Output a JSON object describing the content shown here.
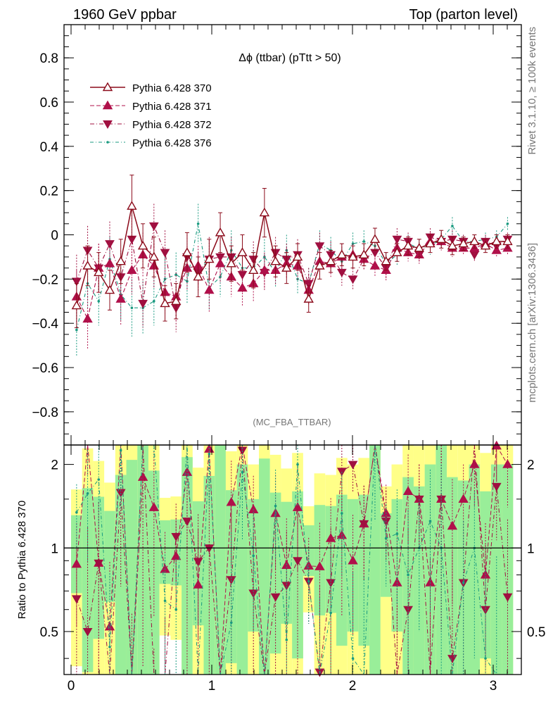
{
  "header": {
    "left": "1960 GeV ppbar",
    "right": "Top (parton level)"
  },
  "side_labels": {
    "rivet": "Rivet 3.1.10, ≥ 100k events",
    "mcplots": "mcplots.cern.ch [arXiv:1306.3436]"
  },
  "chart_data": {
    "type": "line",
    "title": "Δϕ (ttbar) (pTtt > 50)",
    "watermark": "(MC_FBA_TTBAR)",
    "xlim": [
      -0.05,
      3.2
    ],
    "ylim": [
      -0.95,
      0.95
    ],
    "x_ticks": [
      "0",
      "1",
      "2",
      "3"
    ],
    "y_ticks": [
      "−0.8",
      "−0.6",
      "−0.4",
      "−0.2",
      "0",
      "0.2",
      "0.4",
      "0.6",
      "0.8"
    ],
    "ratio": {
      "ylabel": "Ratio to Pythia 6.428 370",
      "ylim": [
        0.35,
        2.35
      ],
      "ticks": [
        "0.5",
        "1",
        "2"
      ],
      "reference_line": 1
    },
    "x": [
      0.0393,
      0.1178,
      0.1963,
      0.2749,
      0.3534,
      0.432,
      0.5105,
      0.589,
      0.6676,
      0.7461,
      0.8247,
      0.9032,
      0.9817,
      1.0603,
      1.1388,
      1.2174,
      1.2959,
      1.3744,
      1.453,
      1.5315,
      1.6101,
      1.6886,
      1.7671,
      1.8457,
      1.9242,
      2.0028,
      2.0813,
      2.1598,
      2.2384,
      2.3169,
      2.3955,
      2.474,
      2.5525,
      2.6311,
      2.7096,
      2.7882,
      2.8667,
      2.9452,
      3.0238,
      3.1023
    ],
    "series": [
      {
        "name": "Pythia 6.428 370",
        "color": "#8b0a1a",
        "marker": "triangle-up-open",
        "dash": "solid",
        "values": [
          -0.32,
          -0.14,
          -0.17,
          -0.25,
          -0.12,
          0.13,
          -0.05,
          -0.1,
          -0.31,
          -0.3,
          -0.08,
          -0.19,
          -0.11,
          0.01,
          -0.13,
          -0.08,
          -0.16,
          0.1,
          -0.12,
          -0.15,
          -0.1,
          -0.29,
          -0.14,
          -0.12,
          -0.09,
          -0.1,
          -0.09,
          -0.02,
          -0.12,
          -0.08,
          -0.05,
          -0.06,
          -0.04,
          -0.02,
          -0.05,
          -0.04,
          -0.03,
          -0.05,
          -0.03,
          -0.03
        ],
        "errors": [
          0.1,
          0.09,
          0.09,
          0.09,
          0.1,
          0.14,
          0.1,
          0.09,
          0.08,
          0.08,
          0.09,
          0.09,
          0.09,
          0.09,
          0.08,
          0.08,
          0.08,
          0.11,
          0.07,
          0.07,
          0.06,
          0.06,
          0.06,
          0.05,
          0.05,
          0.05,
          0.05,
          0.05,
          0.04,
          0.04,
          0.04,
          0.04,
          0.04,
          0.04,
          0.04,
          0.03,
          0.03,
          0.03,
          0.03,
          0.03
        ]
      },
      {
        "name": "Pythia 6.428 371",
        "color": "#b0104a",
        "marker": "triangle-up-filled",
        "dash": "6,3",
        "values": [
          -0.28,
          -0.38,
          -0.15,
          -0.13,
          -0.29,
          -0.16,
          -0.09,
          -0.14,
          -0.26,
          -0.28,
          -0.15,
          -0.14,
          -0.25,
          -0.13,
          -0.19,
          -0.24,
          -0.22,
          -0.16,
          -0.16,
          -0.13,
          -0.14,
          -0.25,
          -0.12,
          -0.13,
          -0.1,
          -0.09,
          -0.11,
          -0.14,
          -0.16,
          -0.06,
          -0.08,
          -0.09,
          -0.03,
          -0.03,
          -0.06,
          -0.06,
          -0.06,
          -0.04,
          -0.07,
          -0.06
        ],
        "errors": [
          0.12,
          0.14,
          0.11,
          0.1,
          0.12,
          0.11,
          0.1,
          0.1,
          0.1,
          0.11,
          0.1,
          0.09,
          0.1,
          0.09,
          0.09,
          0.08,
          0.08,
          0.08,
          0.07,
          0.07,
          0.07,
          0.07,
          0.06,
          0.06,
          0.06,
          0.05,
          0.05,
          0.05,
          0.05,
          0.05,
          0.04,
          0.04,
          0.04,
          0.04,
          0.04,
          0.03,
          0.03,
          0.03,
          0.03,
          0.03
        ]
      },
      {
        "name": "Pythia 6.428 372",
        "color": "#a01040",
        "marker": "triangle-down-filled",
        "dash": "6,3,1,3",
        "values": [
          -0.21,
          -0.07,
          -0.15,
          -0.04,
          -0.19,
          -0.02,
          -0.31,
          0.04,
          -0.08,
          -0.33,
          -0.1,
          -0.17,
          -0.11,
          -0.1,
          -0.1,
          -0.18,
          -0.11,
          -0.17,
          -0.08,
          -0.11,
          -0.09,
          -0.22,
          -0.05,
          -0.09,
          -0.17,
          -0.2,
          -0.11,
          -0.08,
          -0.15,
          -0.02,
          -0.03,
          -0.09,
          -0.01,
          -0.03,
          -0.02,
          -0.03,
          -0.09,
          -0.03,
          -0.05,
          -0.02
        ],
        "errors": [
          0.12,
          0.11,
          0.11,
          0.1,
          0.12,
          0.11,
          0.11,
          0.1,
          0.1,
          0.11,
          0.1,
          0.09,
          0.1,
          0.09,
          0.09,
          0.08,
          0.08,
          0.08,
          0.07,
          0.07,
          0.07,
          0.07,
          0.06,
          0.06,
          0.06,
          0.05,
          0.05,
          0.05,
          0.05,
          0.05,
          0.04,
          0.04,
          0.04,
          0.04,
          0.04,
          0.03,
          0.03,
          0.03,
          0.03,
          0.03
        ]
      },
      {
        "name": "Pythia 6.428 376",
        "color": "#1a9a80",
        "marker": "dot",
        "dash": "5,3,1,3",
        "values": [
          -0.43,
          -0.22,
          -0.3,
          -0.11,
          -0.27,
          -0.33,
          -0.33,
          -0.3,
          -0.2,
          -0.18,
          -0.21,
          0.05,
          -0.24,
          -0.19,
          -0.07,
          -0.15,
          -0.15,
          -0.1,
          -0.17,
          -0.07,
          -0.2,
          -0.22,
          -0.04,
          -0.07,
          -0.12,
          -0.04,
          -0.03,
          -0.05,
          -0.13,
          -0.09,
          -0.04,
          -0.06,
          -0.05,
          -0.02,
          0.04,
          -0.03,
          -0.03,
          -0.02,
          -0.01,
          0.05
        ],
        "errors": [
          0.12,
          0.11,
          0.11,
          0.1,
          0.12,
          0.13,
          0.12,
          0.11,
          0.1,
          0.1,
          0.1,
          0.09,
          0.1,
          0.09,
          0.09,
          0.08,
          0.08,
          0.08,
          0.07,
          0.07,
          0.07,
          0.07,
          0.06,
          0.06,
          0.06,
          0.05,
          0.05,
          0.05,
          0.05,
          0.05,
          0.04,
          0.04,
          0.04,
          0.04,
          0.04,
          0.03,
          0.03,
          0.03,
          0.03,
          0.03
        ]
      }
    ]
  }
}
